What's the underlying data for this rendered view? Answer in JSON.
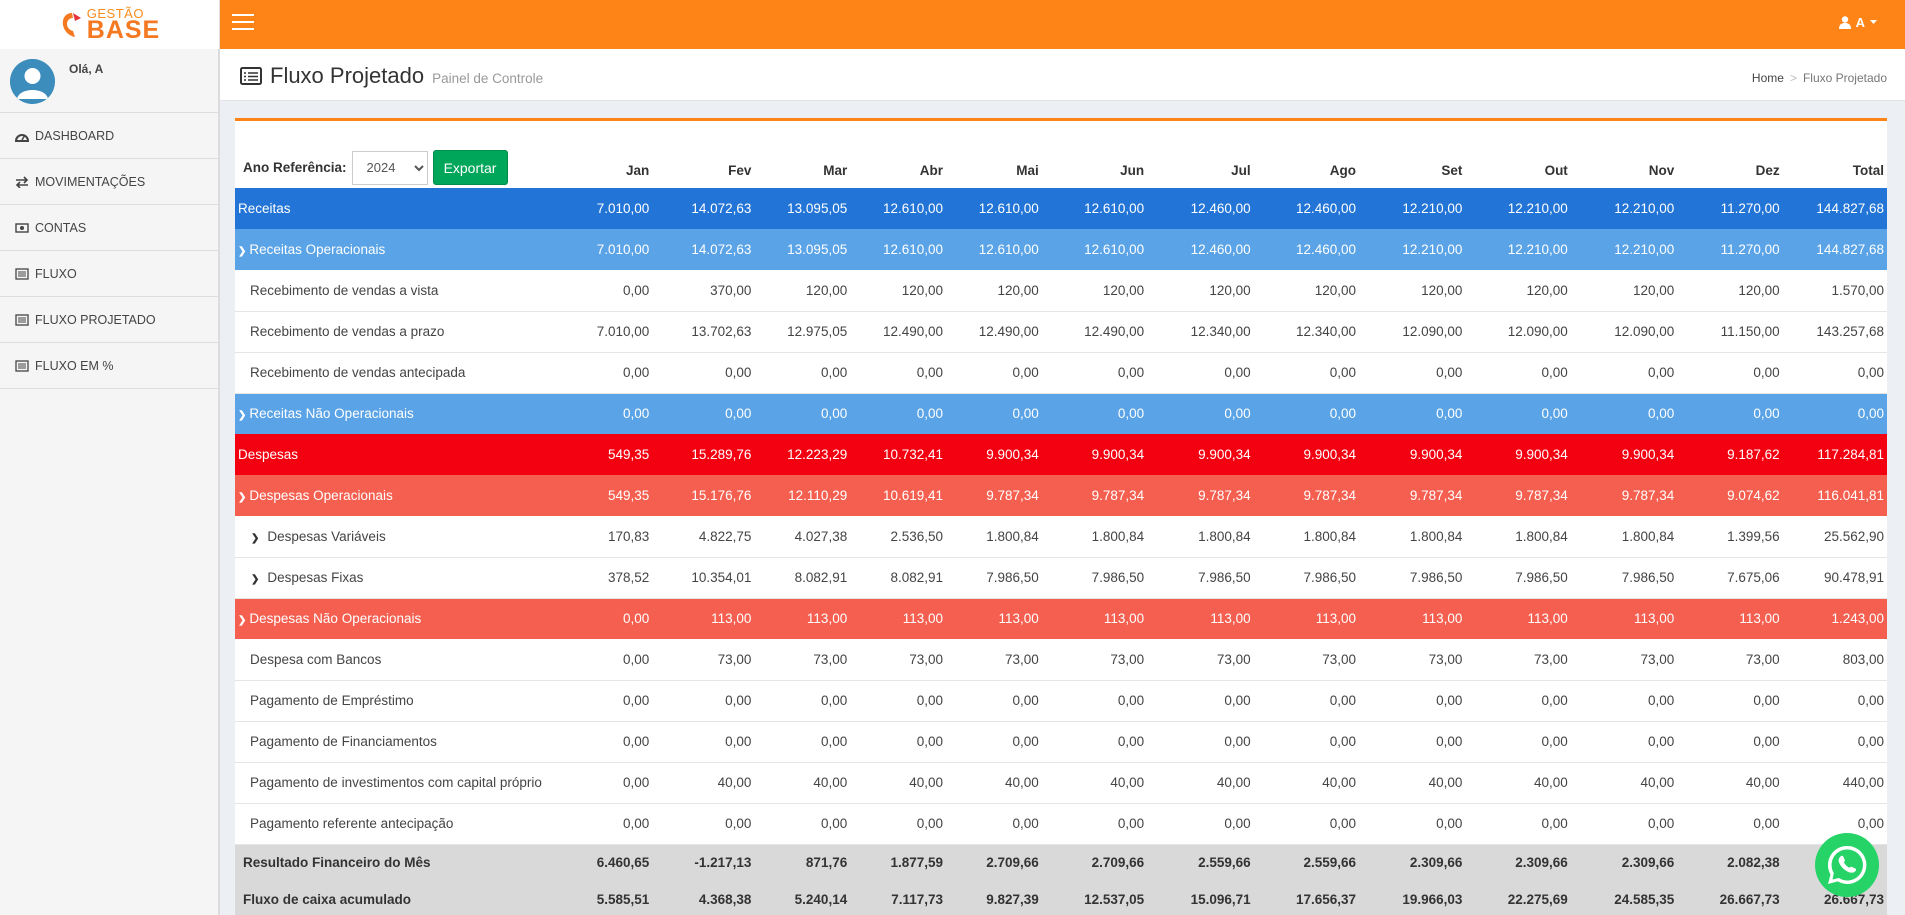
{
  "logo": {
    "small": "GESTÃO",
    "big": "BASE"
  },
  "header": {
    "user_label": "A"
  },
  "sidebar": {
    "greeting": "Olá, A",
    "items": [
      {
        "label": "DASHBOARD",
        "icon": "dashboard-icon"
      },
      {
        "label": "MOVIMENTAÇÕES",
        "icon": "exchange-icon"
      },
      {
        "label": "CONTAS",
        "icon": "money-icon"
      },
      {
        "label": "FLUXO",
        "icon": "list-icon"
      },
      {
        "label": "FLUXO PROJETADO",
        "icon": "list-icon"
      },
      {
        "label": "FLUXO EM %",
        "icon": "list-icon"
      }
    ]
  },
  "page": {
    "title": "Fluxo Projetado",
    "subtitle": "Painel de Controle"
  },
  "breadcrumb": {
    "home": "Home",
    "current": "Fluxo Projetado"
  },
  "filter": {
    "label": "Ano Referência:",
    "year": "2024",
    "export_label": "Exportar"
  },
  "columns": [
    "Jan",
    "Fev",
    "Mar",
    "Abr",
    "Mai",
    "Jun",
    "Jul",
    "Ago",
    "Set",
    "Out",
    "Nov",
    "Dez",
    "Total"
  ],
  "rows": [
    {
      "type": "receitas",
      "label": "Receitas",
      "values": [
        "7.010,00",
        "14.072,63",
        "13.095,05",
        "12.610,00",
        "12.610,00",
        "12.610,00",
        "12.460,00",
        "12.460,00",
        "12.210,00",
        "12.210,00",
        "12.210,00",
        "11.270,00",
        "144.827,68"
      ]
    },
    {
      "type": "receitas-grp",
      "label": "Receitas Operacionais",
      "chevron": true,
      "values": [
        "7.010,00",
        "14.072,63",
        "13.095,05",
        "12.610,00",
        "12.610,00",
        "12.610,00",
        "12.460,00",
        "12.460,00",
        "12.210,00",
        "12.210,00",
        "12.210,00",
        "11.270,00",
        "144.827,68"
      ]
    },
    {
      "type": "detail",
      "label": "Recebimento de vendas a vista",
      "values": [
        "0,00",
        "370,00",
        "120,00",
        "120,00",
        "120,00",
        "120,00",
        "120,00",
        "120,00",
        "120,00",
        "120,00",
        "120,00",
        "120,00",
        "1.570,00"
      ]
    },
    {
      "type": "detail",
      "label": "Recebimento de vendas a prazo",
      "values": [
        "7.010,00",
        "13.702,63",
        "12.975,05",
        "12.490,00",
        "12.490,00",
        "12.490,00",
        "12.340,00",
        "12.340,00",
        "12.090,00",
        "12.090,00",
        "12.090,00",
        "11.150,00",
        "143.257,68"
      ]
    },
    {
      "type": "detail",
      "label": "Recebimento de vendas antecipada",
      "values": [
        "0,00",
        "0,00",
        "0,00",
        "0,00",
        "0,00",
        "0,00",
        "0,00",
        "0,00",
        "0,00",
        "0,00",
        "0,00",
        "0,00",
        "0,00"
      ]
    },
    {
      "type": "receitas-grp",
      "label": "Receitas Não Operacionais",
      "chevron": true,
      "values": [
        "0,00",
        "0,00",
        "0,00",
        "0,00",
        "0,00",
        "0,00",
        "0,00",
        "0,00",
        "0,00",
        "0,00",
        "0,00",
        "0,00",
        "0,00"
      ]
    },
    {
      "type": "despesas",
      "label": "Despesas",
      "values": [
        "549,35",
        "15.289,76",
        "12.223,29",
        "10.732,41",
        "9.900,34",
        "9.900,34",
        "9.900,34",
        "9.900,34",
        "9.900,34",
        "9.900,34",
        "9.900,34",
        "9.187,62",
        "117.284,81"
      ]
    },
    {
      "type": "despesas-grp",
      "label": "Despesas Operacionais",
      "chevron": true,
      "values": [
        "549,35",
        "15.176,76",
        "12.110,29",
        "10.619,41",
        "9.787,34",
        "9.787,34",
        "9.787,34",
        "9.787,34",
        "9.787,34",
        "9.787,34",
        "9.787,34",
        "9.074,62",
        "116.041,81"
      ]
    },
    {
      "type": "detail sub",
      "label": "Despesas Variáveis",
      "chevron": true,
      "values": [
        "170,83",
        "4.822,75",
        "4.027,38",
        "2.536,50",
        "1.800,84",
        "1.800,84",
        "1.800,84",
        "1.800,84",
        "1.800,84",
        "1.800,84",
        "1.800,84",
        "1.399,56",
        "25.562,90"
      ]
    },
    {
      "type": "detail sub",
      "label": "Despesas Fixas",
      "chevron": true,
      "values": [
        "378,52",
        "10.354,01",
        "8.082,91",
        "8.082,91",
        "7.986,50",
        "7.986,50",
        "7.986,50",
        "7.986,50",
        "7.986,50",
        "7.986,50",
        "7.986,50",
        "7.675,06",
        "90.478,91"
      ]
    },
    {
      "type": "despesas-grp",
      "label": "Despesas Não Operacionais",
      "chevron": true,
      "values": [
        "0,00",
        "113,00",
        "113,00",
        "113,00",
        "113,00",
        "113,00",
        "113,00",
        "113,00",
        "113,00",
        "113,00",
        "113,00",
        "113,00",
        "1.243,00"
      ]
    },
    {
      "type": "detail",
      "label": "Despesa com Bancos",
      "values": [
        "0,00",
        "73,00",
        "73,00",
        "73,00",
        "73,00",
        "73,00",
        "73,00",
        "73,00",
        "73,00",
        "73,00",
        "73,00",
        "73,00",
        "803,00"
      ]
    },
    {
      "type": "detail",
      "label": "Pagamento de Empréstimo",
      "values": [
        "0,00",
        "0,00",
        "0,00",
        "0,00",
        "0,00",
        "0,00",
        "0,00",
        "0,00",
        "0,00",
        "0,00",
        "0,00",
        "0,00",
        "0,00"
      ]
    },
    {
      "type": "detail",
      "label": "Pagamento de Financiamentos",
      "values": [
        "0,00",
        "0,00",
        "0,00",
        "0,00",
        "0,00",
        "0,00",
        "0,00",
        "0,00",
        "0,00",
        "0,00",
        "0,00",
        "0,00",
        "0,00"
      ]
    },
    {
      "type": "detail",
      "label": "Pagamento de investimentos com capital próprio",
      "values": [
        "0,00",
        "40,00",
        "40,00",
        "40,00",
        "40,00",
        "40,00",
        "40,00",
        "40,00",
        "40,00",
        "40,00",
        "40,00",
        "40,00",
        "440,00"
      ]
    },
    {
      "type": "detail",
      "label": "Pagamento referente antecipação",
      "values": [
        "0,00",
        "0,00",
        "0,00",
        "0,00",
        "0,00",
        "0,00",
        "0,00",
        "0,00",
        "0,00",
        "0,00",
        "0,00",
        "0,00",
        "0,00"
      ]
    },
    {
      "type": "result",
      "label": "Resultado Financeiro do Mês",
      "values": [
        "6.460,65",
        "-1.217,13",
        "871,76",
        "1.877,59",
        "2.709,66",
        "2.709,66",
        "2.559,66",
        "2.559,66",
        "2.309,66",
        "2.309,66",
        "2.309,66",
        "2.082,38",
        ""
      ]
    },
    {
      "type": "result",
      "label": "Fluxo de caixa acumulado",
      "values": [
        "5.585,51",
        "4.368,38",
        "5.240,14",
        "7.117,73",
        "9.827,39",
        "12.537,05",
        "15.096,71",
        "17.656,37",
        "19.966,03",
        "22.275,69",
        "24.585,35",
        "26.667,73",
        "26.667,73"
      ]
    }
  ]
}
